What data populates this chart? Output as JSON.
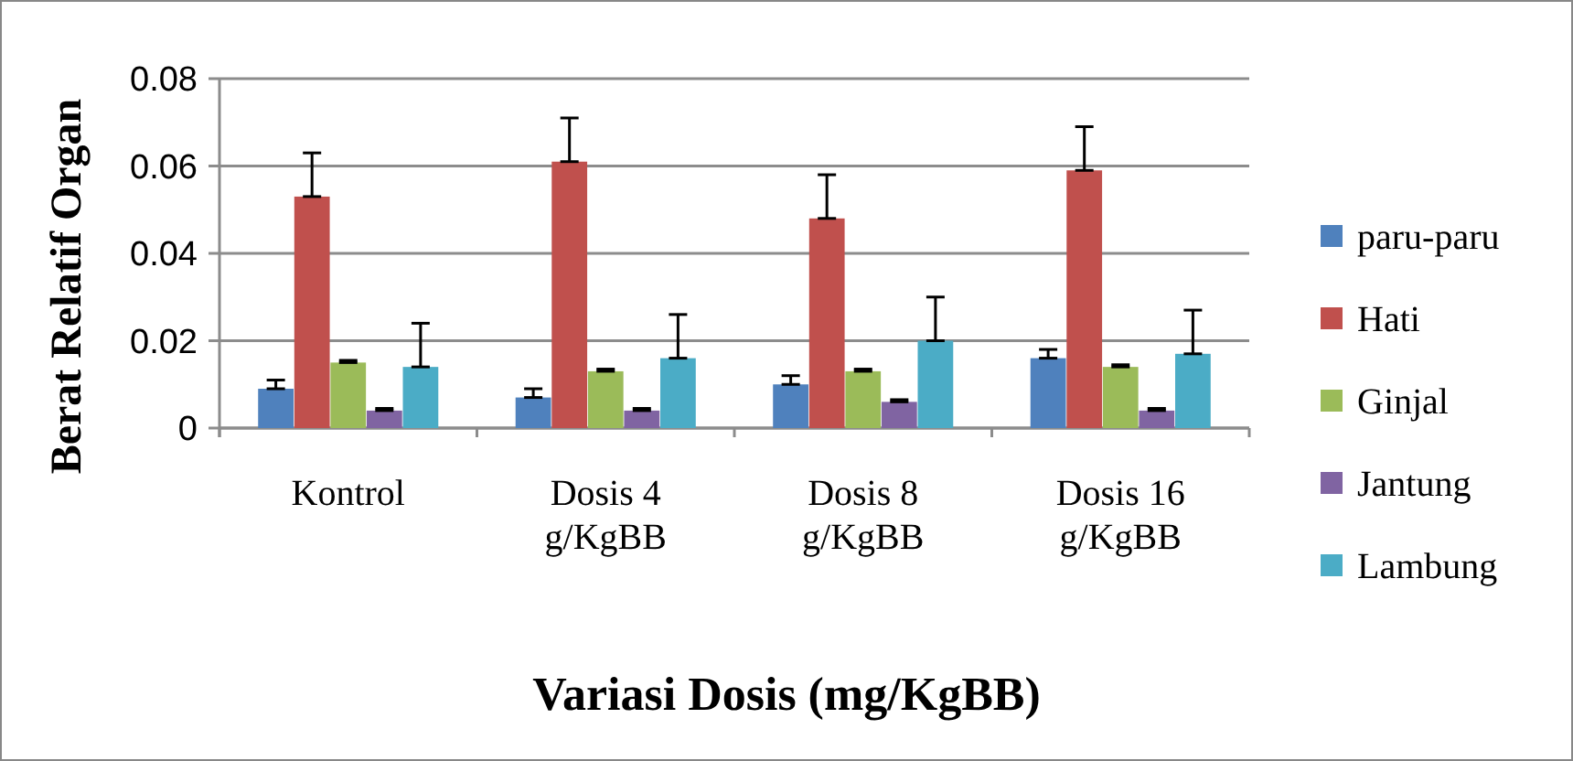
{
  "chart_data": {
    "type": "bar",
    "xlabel": "Variasi Dosis (mg/KgBB)",
    "ylabel": "Berat Relatif Organ",
    "categories": [
      "Kontrol",
      "Dosis 4 g/KgBB",
      "Dosis 8 g/KgBB",
      "Dosis 16 g/KgBB"
    ],
    "series": [
      {
        "name": "paru-paru",
        "color": "#4f81bd",
        "values": [
          0.009,
          0.007,
          0.01,
          0.016
        ],
        "errors": [
          [
            0.009,
            0.011
          ],
          [
            0.007,
            0.009
          ],
          [
            0.01,
            0.012
          ],
          [
            0.016,
            0.018
          ]
        ]
      },
      {
        "name": "Hati",
        "color": "#c0504d",
        "values": [
          0.053,
          0.061,
          0.048,
          0.059
        ],
        "errors": [
          [
            0.053,
            0.063
          ],
          [
            0.061,
            0.071
          ],
          [
            0.048,
            0.058
          ],
          [
            0.059,
            0.069
          ]
        ]
      },
      {
        "name": "Ginjal",
        "color": "#9bbb59",
        "values": [
          0.015,
          0.013,
          0.013,
          0.014
        ],
        "errors": [
          [
            0.015,
            0.0155
          ],
          [
            0.013,
            0.0135
          ],
          [
            0.013,
            0.0135
          ],
          [
            0.014,
            0.0145
          ]
        ]
      },
      {
        "name": "Jantung",
        "color": "#8064a2",
        "values": [
          0.004,
          0.004,
          0.006,
          0.004
        ],
        "errors": [
          [
            0.004,
            0.0045
          ],
          [
            0.004,
            0.0045
          ],
          [
            0.006,
            0.0065
          ],
          [
            0.004,
            0.0045
          ]
        ]
      },
      {
        "name": "Lambung",
        "color": "#4bacc6",
        "values": [
          0.014,
          0.016,
          0.02,
          0.017
        ],
        "errors": [
          [
            0.014,
            0.024
          ],
          [
            0.016,
            0.026
          ],
          [
            0.02,
            0.03
          ],
          [
            0.017,
            0.027
          ]
        ]
      }
    ],
    "ylim": [
      0,
      0.08
    ],
    "yticks": [
      0,
      0.02,
      0.04,
      0.06,
      0.08
    ],
    "grid": "y",
    "legend": "right"
  }
}
